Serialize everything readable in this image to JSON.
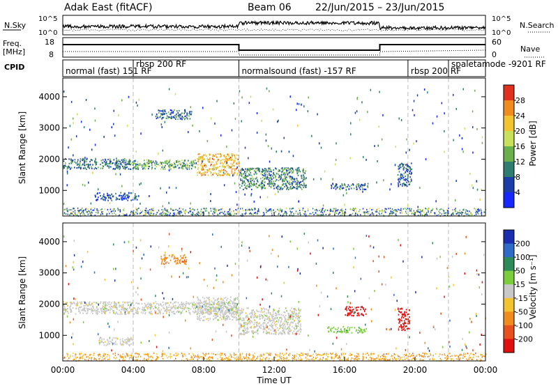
{
  "header": {
    "station": "Adak East (fitACF)",
    "beam": "Beam 06",
    "date_range": "22/Jun/2015 – 23/Jun/2015"
  },
  "summary_panels": {
    "nsky": {
      "label": "N.Sky",
      "ticks": [
        "10^5",
        "10^0"
      ]
    },
    "nsearch": {
      "label": "N.Search",
      "ticks": [
        "10^5",
        "10^0"
      ]
    },
    "freq": {
      "label_line1": "Freq.",
      "label_line2": "[MHz]",
      "ticks": [
        "18",
        "8"
      ]
    },
    "nave": {
      "label": "Nave",
      "ticks": [
        "60",
        "0"
      ]
    },
    "cpid": {
      "label": "CPID",
      "modes": [
        {
          "text": "normal (fast)  151 RF",
          "start_h": 0
        },
        {
          "text": "rbsp 200 RF",
          "start_h": 4.0
        },
        {
          "text": "normalsound (fast) -157 RF",
          "start_h": 10.0
        },
        {
          "text": "rbsp 200 RF",
          "start_h": 19.6
        },
        {
          "text": "spaletamode -9201 RF",
          "start_h": 21.9
        }
      ]
    }
  },
  "chart_data": [
    {
      "type": "heatmap",
      "name": "power",
      "ylabel": "Slant Range [km]",
      "yticks": [
        "1000",
        "2000",
        "3000",
        "4000"
      ],
      "ylim": [
        180,
        4600
      ],
      "xlim": [
        0,
        24
      ],
      "colorbar_label": "Power [dB]",
      "colorbar_ticks": [
        "4",
        "8",
        "12",
        "16",
        "20",
        "24",
        "28"
      ],
      "colorbar_range": [
        0,
        32
      ],
      "colors": [
        "#1428ff",
        "#1a3fa8",
        "#2e7d6e",
        "#6ab04c",
        "#c8e05a",
        "#f4c430",
        "#f08c1e",
        "#e0301e"
      ],
      "regions": [
        {
          "t0": 0.0,
          "t1": 3.8,
          "r0": 1700,
          "r1": 2050,
          "level": 0.25
        },
        {
          "t0": 3.8,
          "t1": 7.6,
          "r0": 1700,
          "r1": 2000,
          "level": 0.4
        },
        {
          "t0": 7.6,
          "t1": 10.0,
          "r0": 1500,
          "r1": 2200,
          "level": 0.75
        },
        {
          "t0": 10.0,
          "t1": 13.8,
          "r0": 1050,
          "r1": 1750,
          "level": 0.3
        },
        {
          "t0": 5.2,
          "t1": 7.3,
          "r0": 3300,
          "r1": 3600,
          "level": 0.2
        },
        {
          "t0": 1.8,
          "t1": 4.2,
          "r0": 700,
          "r1": 950,
          "level": 0.15
        },
        {
          "t0": 15.2,
          "t1": 17.3,
          "r0": 1050,
          "r1": 1250,
          "level": 0.2
        },
        {
          "t0": 19.0,
          "t1": 19.8,
          "r0": 1150,
          "r1": 1900,
          "level": 0.2
        }
      ]
    },
    {
      "type": "heatmap",
      "name": "velocity",
      "xlabel": "Time UT",
      "ylabel": "Slant Range [km]",
      "xticks": [
        "00:00",
        "04:00",
        "08:00",
        "12:00",
        "16:00",
        "20:00",
        "00:00"
      ],
      "yticks": [
        "1000",
        "2000",
        "3000",
        "4000"
      ],
      "ylim": [
        180,
        4600
      ],
      "xlim": [
        0,
        24
      ],
      "colorbar_label": "Velocity [m s⁻¹]",
      "colorbar_ticks": [
        "200",
        "100",
        "50",
        "15",
        "-15",
        "-50",
        "-100",
        "-200"
      ],
      "colors": [
        "#1a2fb0",
        "#2e6cc8",
        "#2e8b57",
        "#7ccd3c",
        "#c8c8c8",
        "#f4c430",
        "#f08c1e",
        "#e8501e",
        "#e01010"
      ],
      "regions": [
        {
          "t0": 0.0,
          "t1": 10.0,
          "r0": 1700,
          "r1": 2100,
          "level": 4
        },
        {
          "t0": 7.6,
          "t1": 10.0,
          "r0": 1500,
          "r1": 2250,
          "level": 4
        },
        {
          "t0": 10.0,
          "t1": 13.5,
          "r0": 1050,
          "r1": 1900,
          "level": 4
        },
        {
          "t0": 2.0,
          "t1": 4.0,
          "r0": 700,
          "r1": 950,
          "level": 4
        },
        {
          "t0": 15.0,
          "t1": 17.2,
          "r0": 1100,
          "r1": 1300,
          "level": 3
        },
        {
          "t0": 16.0,
          "t1": 17.2,
          "r0": 1650,
          "r1": 1950,
          "level": 8
        },
        {
          "t0": 19.0,
          "t1": 19.7,
          "r0": 1150,
          "r1": 1900,
          "level": 8
        },
        {
          "t0": 5.5,
          "t1": 7.0,
          "r0": 3300,
          "r1": 3600,
          "level": 6
        }
      ]
    }
  ]
}
